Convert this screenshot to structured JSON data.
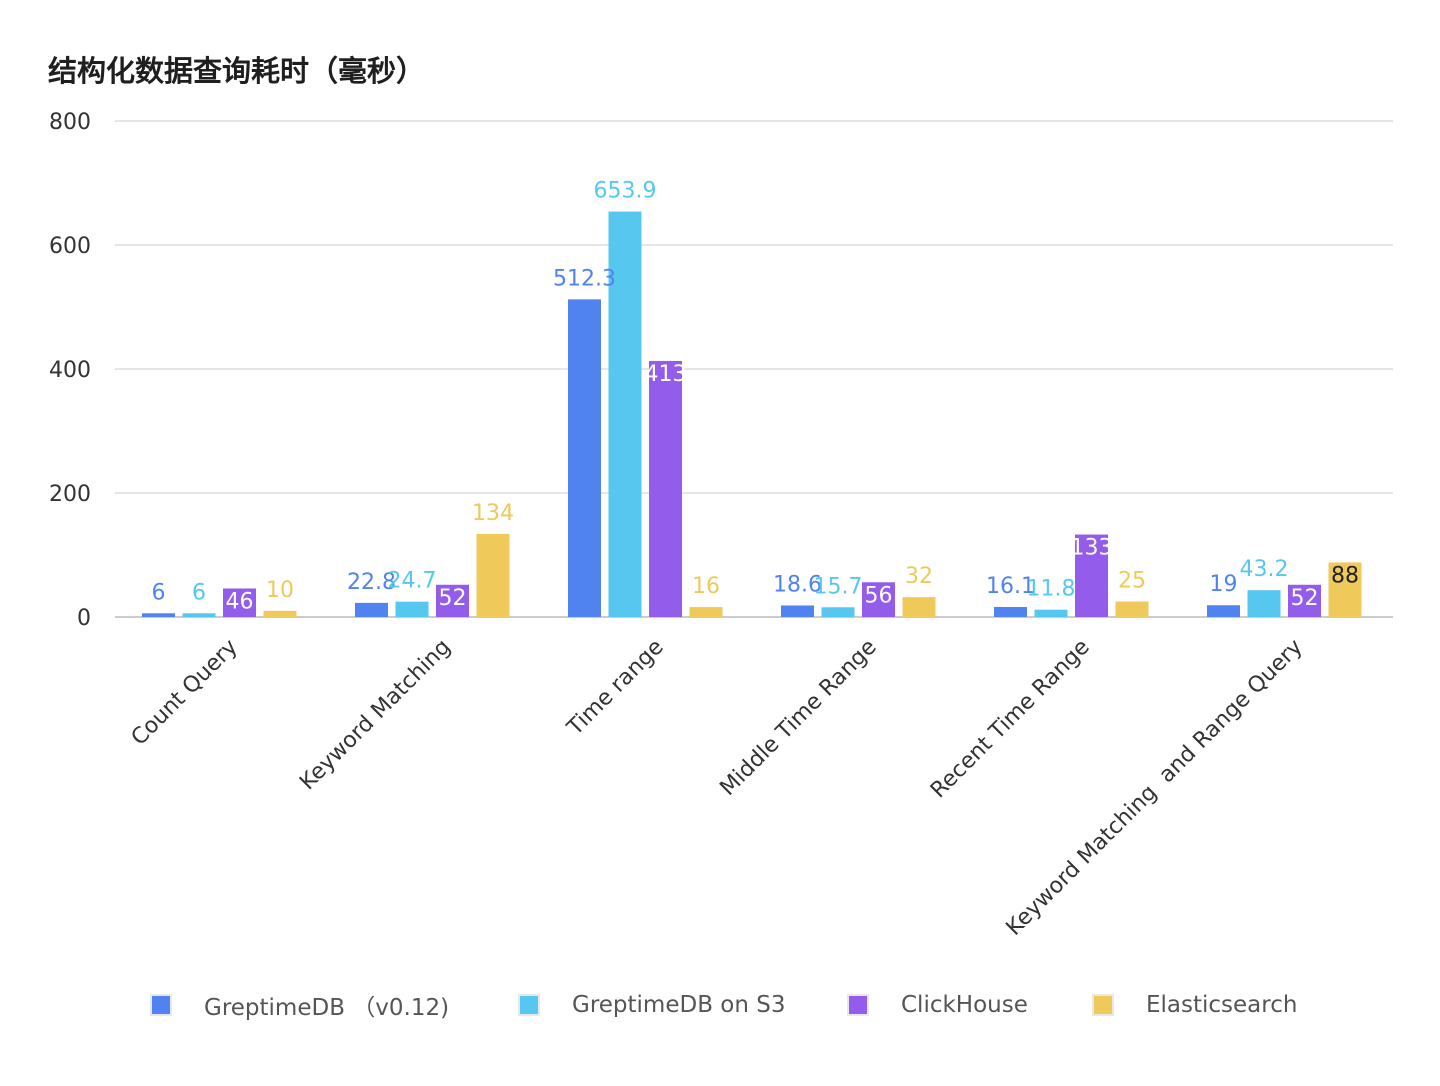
{
  "chart_data": {
    "type": "bar",
    "title": "结构化数据查询耗时（毫秒）",
    "xlabel": "",
    "ylabel": "",
    "ylim": [
      0,
      800
    ],
    "yticks": [
      0,
      200,
      400,
      600,
      800
    ],
    "grid": true,
    "legend_position": "bottom",
    "categories": [
      "Count Query",
      "Keyword Matching",
      "Time range",
      "Middle Time Range",
      "Recent Time Range",
      "Keyword Matching  and Range Query"
    ],
    "series": [
      {
        "name": "GreptimeDB （v0.12)",
        "color": "#5183f0",
        "label_color": "#5183f0",
        "values": [
          6,
          22.8,
          512.3,
          18.6,
          16.1,
          19
        ]
      },
      {
        "name": "GreptimeDB on S3",
        "color": "#56c8f0",
        "label_color": "#56c8f0",
        "values": [
          6,
          24.7,
          653.9,
          15.7,
          11.8,
          43.2
        ]
      },
      {
        "name": "ClickHouse",
        "color": "#945cea",
        "label_color": "#945cea",
        "values": [
          46,
          52,
          413,
          56,
          133,
          52
        ]
      },
      {
        "name": "Elasticsearch",
        "color": "#efc95a",
        "label_color": "#efc95a",
        "values": [
          10,
          134,
          16,
          32,
          25,
          88
        ]
      }
    ]
  }
}
